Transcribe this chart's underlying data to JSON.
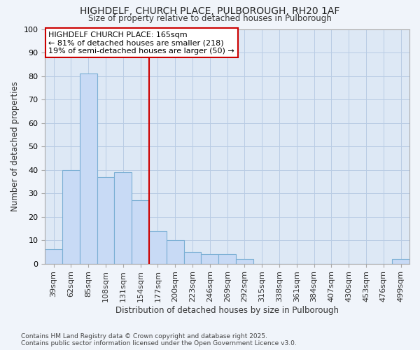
{
  "title1": "HIGHDELF, CHURCH PLACE, PULBOROUGH, RH20 1AF",
  "title2": "Size of property relative to detached houses in Pulborough",
  "xlabel": "Distribution of detached houses by size in Pulborough",
  "ylabel": "Number of detached properties",
  "footnote1": "Contains HM Land Registry data © Crown copyright and database right 2025.",
  "footnote2": "Contains public sector information licensed under the Open Government Licence v3.0.",
  "categories": [
    "39sqm",
    "62sqm",
    "85sqm",
    "108sqm",
    "131sqm",
    "154sqm",
    "177sqm",
    "200sqm",
    "223sqm",
    "246sqm",
    "269sqm",
    "292sqm",
    "315sqm",
    "338sqm",
    "361sqm",
    "384sqm",
    "407sqm",
    "430sqm",
    "453sqm",
    "476sqm",
    "499sqm"
  ],
  "values": [
    6,
    40,
    81,
    37,
    39,
    27,
    14,
    10,
    5,
    4,
    4,
    2,
    0,
    0,
    0,
    0,
    0,
    0,
    0,
    0,
    2
  ],
  "bar_color": "#c8daf5",
  "bar_edge_color": "#7bafd4",
  "highlight_color": "#cc0000",
  "annotation_text": "HIGHDELF CHURCH PLACE: 165sqm\n← 81% of detached houses are smaller (218)\n19% of semi-detached houses are larger (50) →",
  "ylim": [
    0,
    100
  ],
  "background_color": "#dde8f5",
  "plot_bg_color": "#dde8f5",
  "grid_color": "#b8cce4"
}
